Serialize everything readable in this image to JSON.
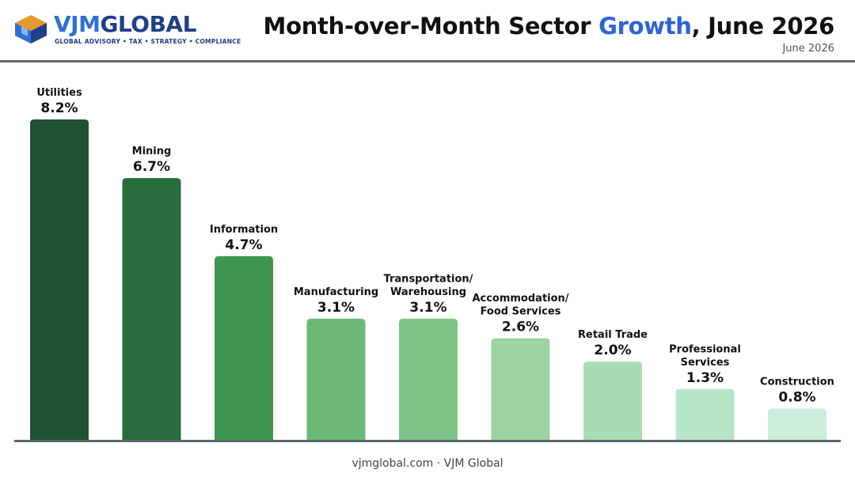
{
  "header": {
    "logo_name": "VJMGLOBAL",
    "logo_name_part1": "VJM",
    "logo_name_part2": "GLOBAL",
    "logo_tagline": "GLOBAL ADVISORY • TAX • STRATEGY • COMPLIANCE",
    "title_part1": "Month-over-Month Sector ",
    "title_accent": "Growth",
    "title_part2": ", June 2026",
    "subtitle": "June 2026"
  },
  "footer": {
    "text": "vjmglobal.com · VJM Global"
  },
  "colors": {
    "title_accent": "#2b62d9",
    "axis": "#5c6670",
    "bar_gradient": [
      "#1e5230",
      "#286c3e",
      "#3f9651",
      "#6dba78",
      "#7fc487",
      "#9dd3a2",
      "#a9dcb0",
      "#b7e6c7",
      "#cbeedb"
    ]
  },
  "chart_data": {
    "type": "bar",
    "title": "Month-over-Month Sector Growth, June 2026",
    "subtitle": "June 2026",
    "categories": [
      [
        "Utilities"
      ],
      [
        "Mining"
      ],
      [
        "Information"
      ],
      [
        "Manufacturing"
      ],
      [
        "Transportation/",
        "Warehousing"
      ],
      [
        "Accommodation/",
        "Food Services"
      ],
      [
        "Retail Trade"
      ],
      [
        "Professional",
        "Services"
      ],
      [
        "Construction"
      ]
    ],
    "values": [
      8.2,
      6.7,
      4.7,
      3.1,
      3.1,
      2.6,
      2.0,
      1.3,
      0.8
    ],
    "value_labels": [
      "8.2%",
      "6.7%",
      "4.7%",
      "3.1%",
      "3.1%",
      "2.6%",
      "2.0%",
      "1.3%",
      "0.8%"
    ],
    "unit": "%",
    "ylim": [
      0,
      8.2
    ],
    "grid": false,
    "legend": "none"
  }
}
